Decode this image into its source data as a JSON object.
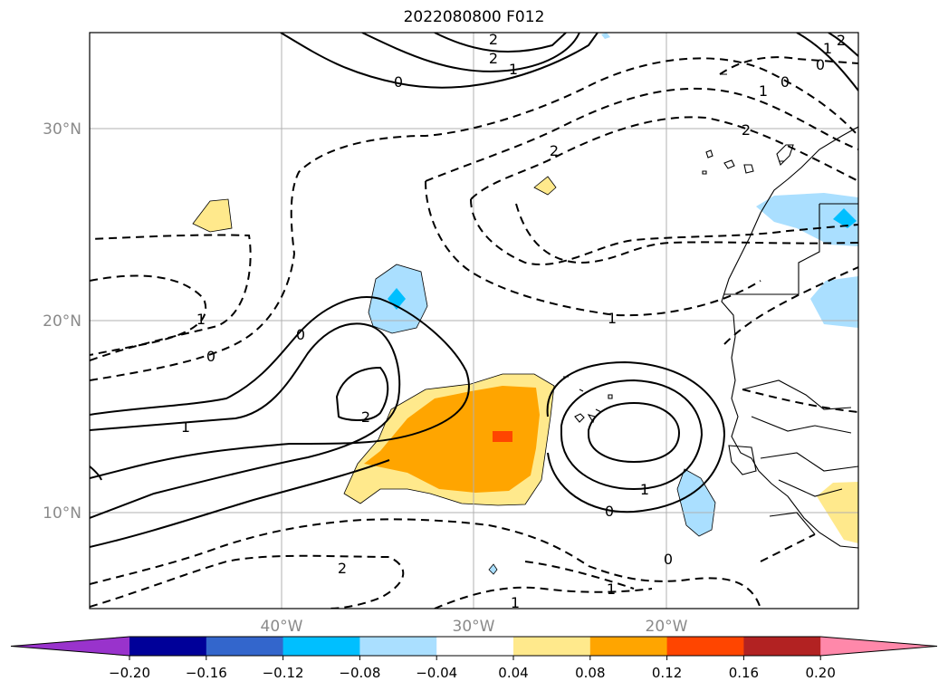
{
  "title": "2022080800 F012",
  "latitude_labels": [
    "30°N",
    "20°N",
    "10°N"
  ],
  "longitude_labels": [
    "40°W",
    "30°W",
    "20°W"
  ],
  "contour_labels": [
    "2",
    "2",
    "1",
    "0",
    "0",
    "1",
    "2",
    "2",
    "1",
    "0",
    "1",
    "0",
    "2",
    "1",
    "2",
    "0",
    "1",
    "0",
    "2",
    "1",
    "0",
    "1",
    "1"
  ],
  "colorbar": {
    "tick_labels": [
      "−0.20",
      "−0.16",
      "−0.12",
      "−0.08",
      "−0.04",
      "0.04",
      "0.08",
      "0.12",
      "0.16",
      "0.20"
    ],
    "colors": [
      "#9933cc",
      "#000099",
      "#3366cc",
      "#00bfff",
      "#aadfff",
      "#ffffff",
      "#ffe98c",
      "#ffa500",
      "#ff4500",
      "#b22222",
      "#ff88aa"
    ]
  }
}
